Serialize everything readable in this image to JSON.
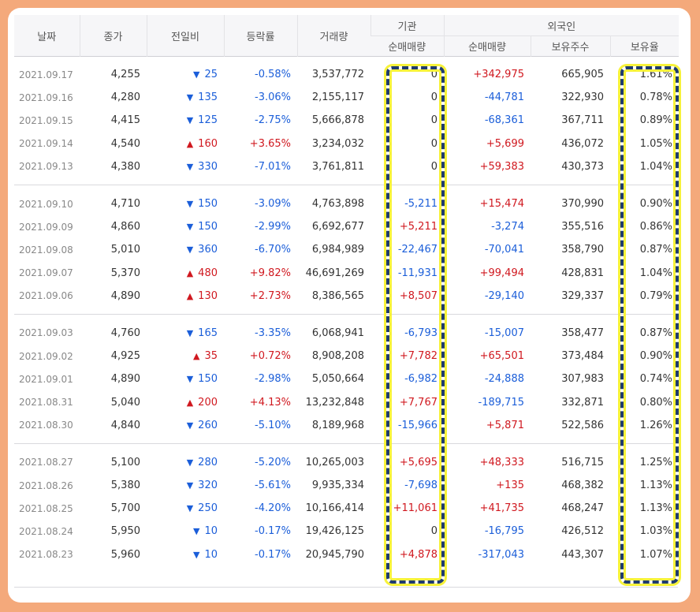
{
  "headers": {
    "date": "날짜",
    "close": "종가",
    "diff": "전일비",
    "rate": "등락률",
    "volume": "거래량",
    "institution": "기관",
    "foreign": "외국인",
    "inst_net": "순매매량",
    "foreign_net": "순매매량",
    "foreign_hold": "보유주수",
    "foreign_ratio": "보유율"
  },
  "colors": {
    "up": "#d0181f",
    "down": "#1b5ed9",
    "highlight_border": "#1f3b6e",
    "highlight_glow": "#f7f23a",
    "frame": "#f4a97b"
  },
  "groups": [
    [
      {
        "date": "2021.09.17",
        "close": "4,255",
        "dir": "down",
        "diff": "25",
        "rate": "-0.58%",
        "volume": "3,537,772",
        "inst": "0",
        "fnet": "+342,975",
        "fhold": "665,905",
        "fratio": "1.61%"
      },
      {
        "date": "2021.09.16",
        "close": "4,280",
        "dir": "down",
        "diff": "135",
        "rate": "-3.06%",
        "volume": "2,155,117",
        "inst": "0",
        "fnet": "-44,781",
        "fhold": "322,930",
        "fratio": "0.78%"
      },
      {
        "date": "2021.09.15",
        "close": "4,415",
        "dir": "down",
        "diff": "125",
        "rate": "-2.75%",
        "volume": "5,666,878",
        "inst": "0",
        "fnet": "-68,361",
        "fhold": "367,711",
        "fratio": "0.89%"
      },
      {
        "date": "2021.09.14",
        "close": "4,540",
        "dir": "up",
        "diff": "160",
        "rate": "+3.65%",
        "volume": "3,234,032",
        "inst": "0",
        "fnet": "+5,699",
        "fhold": "436,072",
        "fratio": "1.05%"
      },
      {
        "date": "2021.09.13",
        "close": "4,380",
        "dir": "down",
        "diff": "330",
        "rate": "-7.01%",
        "volume": "3,761,811",
        "inst": "0",
        "fnet": "+59,383",
        "fhold": "430,373",
        "fratio": "1.04%"
      }
    ],
    [
      {
        "date": "2021.09.10",
        "close": "4,710",
        "dir": "down",
        "diff": "150",
        "rate": "-3.09%",
        "volume": "4,763,898",
        "inst": "-5,211",
        "fnet": "+15,474",
        "fhold": "370,990",
        "fratio": "0.90%"
      },
      {
        "date": "2021.09.09",
        "close": "4,860",
        "dir": "down",
        "diff": "150",
        "rate": "-2.99%",
        "volume": "6,692,677",
        "inst": "+5,211",
        "fnet": "-3,274",
        "fhold": "355,516",
        "fratio": "0.86%"
      },
      {
        "date": "2021.09.08",
        "close": "5,010",
        "dir": "down",
        "diff": "360",
        "rate": "-6.70%",
        "volume": "6,984,989",
        "inst": "-22,467",
        "fnet": "-70,041",
        "fhold": "358,790",
        "fratio": "0.87%"
      },
      {
        "date": "2021.09.07",
        "close": "5,370",
        "dir": "up",
        "diff": "480",
        "rate": "+9.82%",
        "volume": "46,691,269",
        "inst": "-11,931",
        "fnet": "+99,494",
        "fhold": "428,831",
        "fratio": "1.04%"
      },
      {
        "date": "2021.09.06",
        "close": "4,890",
        "dir": "up",
        "diff": "130",
        "rate": "+2.73%",
        "volume": "8,386,565",
        "inst": "+8,507",
        "fnet": "-29,140",
        "fhold": "329,337",
        "fratio": "0.79%"
      }
    ],
    [
      {
        "date": "2021.09.03",
        "close": "4,760",
        "dir": "down",
        "diff": "165",
        "rate": "-3.35%",
        "volume": "6,068,941",
        "inst": "-6,793",
        "fnet": "-15,007",
        "fhold": "358,477",
        "fratio": "0.87%"
      },
      {
        "date": "2021.09.02",
        "close": "4,925",
        "dir": "up",
        "diff": "35",
        "rate": "+0.72%",
        "volume": "8,908,208",
        "inst": "+7,782",
        "fnet": "+65,501",
        "fhold": "373,484",
        "fratio": "0.90%"
      },
      {
        "date": "2021.09.01",
        "close": "4,890",
        "dir": "down",
        "diff": "150",
        "rate": "-2.98%",
        "volume": "5,050,664",
        "inst": "-6,982",
        "fnet": "-24,888",
        "fhold": "307,983",
        "fratio": "0.74%"
      },
      {
        "date": "2021.08.31",
        "close": "5,040",
        "dir": "up",
        "diff": "200",
        "rate": "+4.13%",
        "volume": "13,232,848",
        "inst": "+7,767",
        "fnet": "-189,715",
        "fhold": "332,871",
        "fratio": "0.80%"
      },
      {
        "date": "2021.08.30",
        "close": "4,840",
        "dir": "down",
        "diff": "260",
        "rate": "-5.10%",
        "volume": "8,189,968",
        "inst": "-15,966",
        "fnet": "+5,871",
        "fhold": "522,586",
        "fratio": "1.26%"
      }
    ],
    [
      {
        "date": "2021.08.27",
        "close": "5,100",
        "dir": "down",
        "diff": "280",
        "rate": "-5.20%",
        "volume": "10,265,003",
        "inst": "+5,695",
        "fnet": "+48,333",
        "fhold": "516,715",
        "fratio": "1.25%"
      },
      {
        "date": "2021.08.26",
        "close": "5,380",
        "dir": "down",
        "diff": "320",
        "rate": "-5.61%",
        "volume": "9,935,334",
        "inst": "-7,698",
        "fnet": "+135",
        "fhold": "468,382",
        "fratio": "1.13%"
      },
      {
        "date": "2021.08.25",
        "close": "5,700",
        "dir": "down",
        "diff": "250",
        "rate": "-4.20%",
        "volume": "10,166,414",
        "inst": "+11,061",
        "fnet": "+41,735",
        "fhold": "468,247",
        "fratio": "1.13%"
      },
      {
        "date": "2021.08.24",
        "close": "5,950",
        "dir": "down",
        "diff": "10",
        "rate": "-0.17%",
        "volume": "19,426,125",
        "inst": "0",
        "fnet": "-16,795",
        "fhold": "426,512",
        "fratio": "1.03%"
      },
      {
        "date": "2021.08.23",
        "close": "5,960",
        "dir": "down",
        "diff": "10",
        "rate": "-0.17%",
        "volume": "20,945,790",
        "inst": "+4,878",
        "fnet": "-317,043",
        "fhold": "443,307",
        "fratio": "1.07%"
      }
    ]
  ]
}
